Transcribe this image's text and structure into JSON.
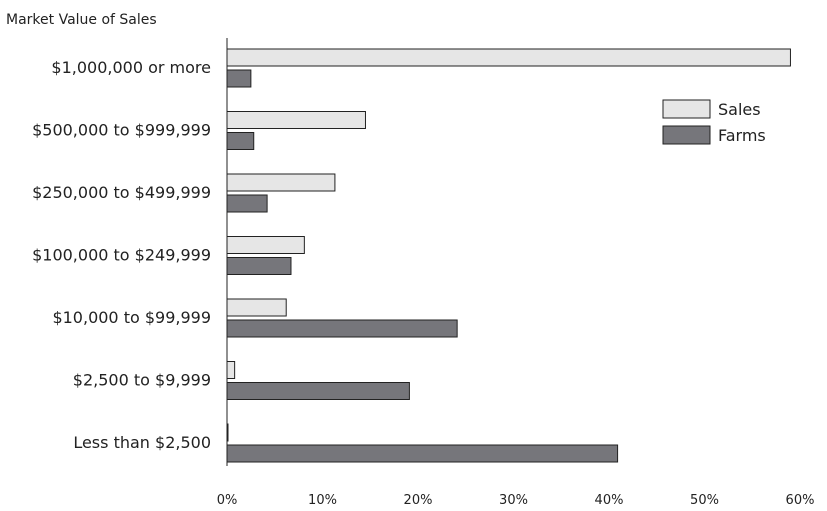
{
  "chart_data": {
    "type": "bar",
    "orientation": "horizontal",
    "title": "",
    "ylabel": "Market Value of Sales",
    "xlabel": "",
    "categories": [
      "$1,000,000 or more",
      "$500,000 to $999,999",
      "$250,000 to $499,999",
      "$100,000 to $249,999",
      "$10,000 to $99,999",
      "$2,500 to $9,999",
      "Less than $2,500"
    ],
    "series": [
      {
        "name": "Sales",
        "color": "#e6e6e6",
        "values": [
          59,
          14.5,
          11.3,
          8.1,
          6.2,
          0.8,
          0.1
        ]
      },
      {
        "name": "Farms",
        "color": "#76767b",
        "values": [
          2.5,
          2.8,
          4.2,
          6.7,
          24.1,
          19.1,
          40.9
        ]
      }
    ],
    "xlim": [
      0,
      60
    ],
    "xticks": [
      0,
      10,
      20,
      30,
      40,
      50,
      60
    ],
    "xtick_labels": [
      "0%",
      "10%",
      "20%",
      "30%",
      "40%",
      "50%",
      "60%"
    ],
    "grid": false,
    "legend_position": "top-right"
  }
}
